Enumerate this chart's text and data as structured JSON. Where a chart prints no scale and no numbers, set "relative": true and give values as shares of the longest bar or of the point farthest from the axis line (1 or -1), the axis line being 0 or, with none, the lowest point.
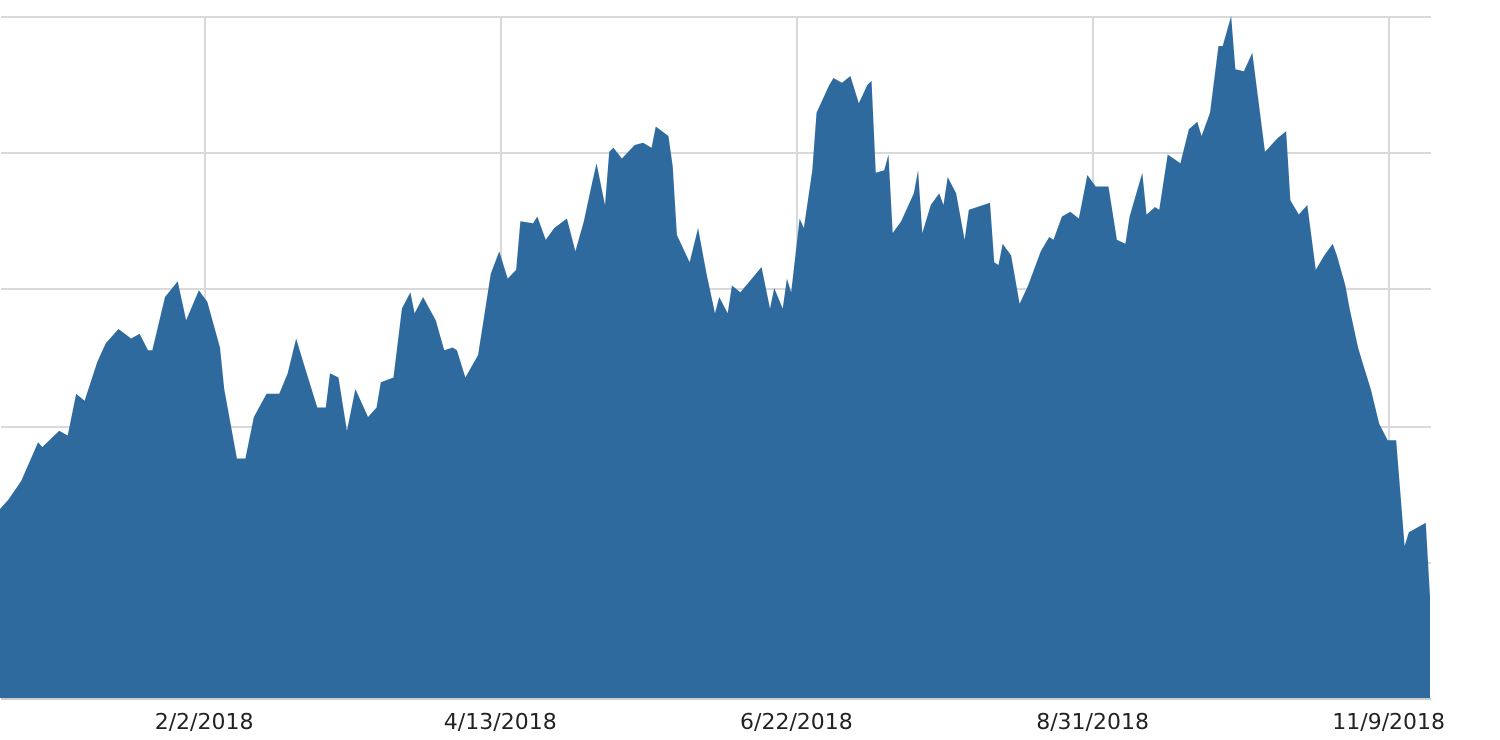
{
  "chart_data": {
    "type": "area",
    "relative": true,
    "color": "#2e6a9e",
    "grid": true,
    "xlim": [
      "2017-12-16",
      "2018-11-19"
    ],
    "xticks": [
      {
        "value": "2018-02-02",
        "label": "2/2/2018"
      },
      {
        "value": "2018-04-13",
        "label": "4/13/2018"
      },
      {
        "value": "2018-06-22",
        "label": "6/22/2018"
      },
      {
        "value": "2018-08-31",
        "label": "8/31/2018"
      },
      {
        "value": "2018-11-09",
        "label": "11/9/2018"
      }
    ],
    "x": [
      "2017-12-16",
      "2017-12-18",
      "2017-12-21",
      "2017-12-25",
      "2017-12-26",
      "2017-12-30",
      "2018-01-01",
      "2018-01-03",
      "2018-01-05",
      "2018-01-08",
      "2018-01-10",
      "2018-01-13",
      "2018-01-16",
      "2018-01-18",
      "2018-01-20",
      "2018-01-21",
      "2018-01-24",
      "2018-01-27",
      "2018-01-29",
      "2018-02-01",
      "2018-02-03",
      "2018-02-06",
      "2018-02-07",
      "2018-02-10",
      "2018-02-12",
      "2018-02-14",
      "2018-02-17",
      "2018-02-20",
      "2018-02-22",
      "2018-02-24",
      "2018-02-26",
      "2018-03-01",
      "2018-03-03",
      "2018-03-04",
      "2018-03-06",
      "2018-03-08",
      "2018-03-10",
      "2018-03-13",
      "2018-03-15",
      "2018-03-16",
      "2018-03-19",
      "2018-03-21",
      "2018-03-23",
      "2018-03-24",
      "2018-03-26",
      "2018-03-29",
      "2018-03-31",
      "2018-04-02",
      "2018-04-03",
      "2018-04-05",
      "2018-04-08",
      "2018-04-11",
      "2018-04-13",
      "2018-04-15",
      "2018-04-17",
      "2018-04-18",
      "2018-04-21",
      "2018-04-22",
      "2018-04-24",
      "2018-04-26",
      "2018-04-29",
      "2018-05-01",
      "2018-05-03",
      "2018-05-05",
      "2018-05-06",
      "2018-05-08",
      "2018-05-09",
      "2018-05-10",
      "2018-05-12",
      "2018-05-15",
      "2018-05-17",
      "2018-05-19",
      "2018-05-20",
      "2018-05-23",
      "2018-05-24",
      "2018-05-25",
      "2018-05-28",
      "2018-05-30",
      "2018-06-01",
      "2018-06-03",
      "2018-06-04",
      "2018-06-06",
      "2018-06-07",
      "2018-06-09",
      "2018-06-14",
      "2018-06-16",
      "2018-06-17",
      "2018-06-19",
      "2018-06-20",
      "2018-06-21",
      "2018-06-23",
      "2018-06-24",
      "2018-06-26",
      "2018-06-27",
      "2018-06-30",
      "2018-07-01",
      "2018-07-03",
      "2018-07-05",
      "2018-07-07",
      "2018-07-09",
      "2018-07-10",
      "2018-07-11",
      "2018-07-13",
      "2018-07-14",
      "2018-07-15",
      "2018-07-17",
      "2018-07-20",
      "2018-07-21",
      "2018-07-22",
      "2018-07-24",
      "2018-07-26",
      "2018-07-27",
      "2018-07-28",
      "2018-07-30",
      "2018-08-01",
      "2018-08-02",
      "2018-08-04",
      "2018-08-07",
      "2018-08-08",
      "2018-08-09",
      "2018-08-10",
      "2018-08-12",
      "2018-08-14",
      "2018-08-16",
      "2018-08-19",
      "2018-08-21",
      "2018-08-22",
      "2018-08-24",
      "2018-08-26",
      "2018-08-28",
      "2018-08-30",
      "2018-09-01",
      "2018-09-04",
      "2018-09-06",
      "2018-09-08",
      "2018-09-09",
      "2018-09-12",
      "2018-09-13",
      "2018-09-15",
      "2018-09-16",
      "2018-09-18",
      "2018-09-21",
      "2018-09-23",
      "2018-09-25",
      "2018-09-26",
      "2018-09-28",
      "2018-09-30",
      "2018-10-01",
      "2018-10-03",
      "2018-10-04",
      "2018-10-06",
      "2018-10-08",
      "2018-10-11",
      "2018-10-14",
      "2018-10-16",
      "2018-10-17",
      "2018-10-19",
      "2018-10-21",
      "2018-10-23",
      "2018-10-25",
      "2018-10-27",
      "2018-10-28",
      "2018-10-30",
      "2018-10-31",
      "2018-11-02",
      "2018-11-03",
      "2018-11-05",
      "2018-11-07",
      "2018-11-09",
      "2018-11-11",
      "2018-11-13",
      "2018-11-14",
      "2018-11-16",
      "2018-11-18",
      "2018-11-19"
    ],
    "values": [
      0.277,
      0.291,
      0.318,
      0.375,
      0.368,
      0.392,
      0.385,
      0.446,
      0.436,
      0.493,
      0.52,
      0.541,
      0.527,
      0.534,
      0.51,
      0.51,
      0.588,
      0.611,
      0.554,
      0.598,
      0.581,
      0.514,
      0.453,
      0.351,
      0.351,
      0.412,
      0.446,
      0.446,
      0.476,
      0.527,
      0.486,
      0.426,
      0.426,
      0.476,
      0.47,
      0.392,
      0.453,
      0.412,
      0.426,
      0.463,
      0.47,
      0.571,
      0.595,
      0.564,
      0.588,
      0.554,
      0.51,
      0.514,
      0.51,
      0.47,
      0.503,
      0.622,
      0.655,
      0.615,
      0.628,
      0.699,
      0.696,
      0.706,
      0.672,
      0.689,
      0.703,
      0.655,
      0.699,
      0.757,
      0.784,
      0.723,
      0.801,
      0.807,
      0.791,
      0.811,
      0.814,
      0.807,
      0.838,
      0.824,
      0.78,
      0.679,
      0.639,
      0.689,
      0.622,
      0.564,
      0.588,
      0.564,
      0.605,
      0.595,
      0.632,
      0.571,
      0.601,
      0.571,
      0.615,
      0.595,
      0.703,
      0.689,
      0.774,
      0.858,
      0.899,
      0.909,
      0.902,
      0.912,
      0.872,
      0.899,
      0.905,
      0.77,
      0.774,
      0.797,
      0.682,
      0.699,
      0.74,
      0.774,
      0.682,
      0.723,
      0.74,
      0.723,
      0.764,
      0.74,
      0.672,
      0.716,
      0.72,
      0.726,
      0.639,
      0.635,
      0.666,
      0.649,
      0.578,
      0.605,
      0.655,
      0.676,
      0.672,
      0.706,
      0.713,
      0.703,
      0.767,
      0.75,
      0.75,
      0.672,
      0.666,
      0.706,
      0.77,
      0.709,
      0.72,
      0.716,
      0.797,
      0.784,
      0.834,
      0.845,
      0.824,
      0.858,
      0.956,
      0.956,
      1,
      0.922,
      0.919,
      0.946,
      0.801,
      0.821,
      0.831,
      0.73,
      0.709,
      0.723,
      0.628,
      0.649,
      0.666,
      0.649,
      0.605,
      0.571,
      0.514,
      0.493,
      0.453,
      0.402,
      0.378,
      0.378,
      0.223,
      0.243,
      0.25,
      0.257,
      0.149
    ]
  }
}
